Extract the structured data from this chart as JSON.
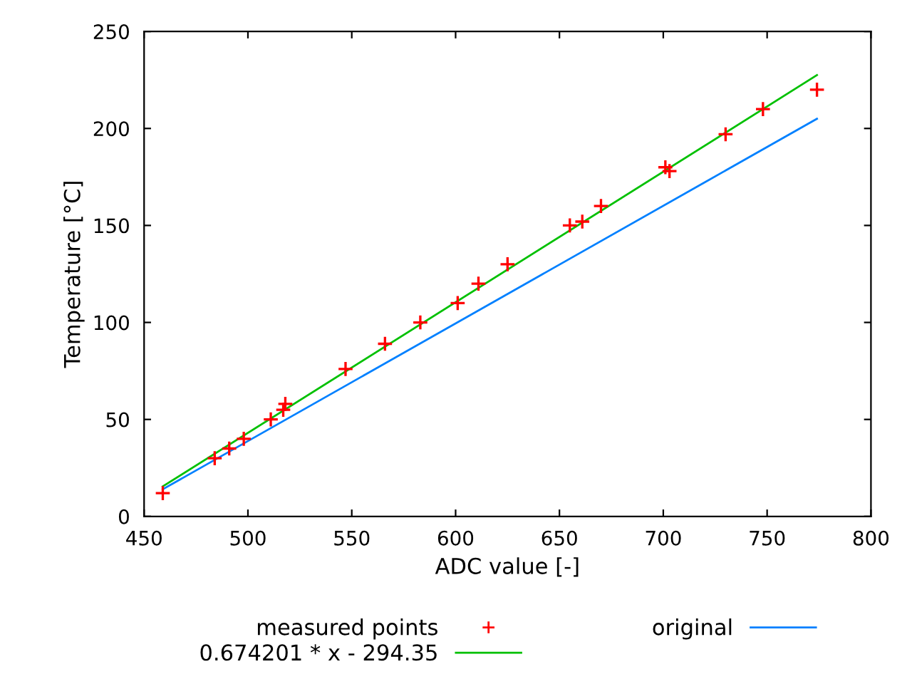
{
  "chart_data": {
    "type": "scatter",
    "xlabel": "ADC value [-]",
    "ylabel": "Temperature [°C]",
    "xlim": [
      450,
      800
    ],
    "xticks": [
      450,
      500,
      550,
      600,
      650,
      700,
      750,
      800
    ],
    "ylim": [
      0,
      250
    ],
    "yticks": [
      0,
      50,
      100,
      150,
      200,
      250
    ],
    "grid": false,
    "legend": "bottom",
    "series": [
      {
        "name": "measured points",
        "marker": "cross",
        "color": "#ff0000",
        "x": [
          459,
          484,
          491,
          498,
          511,
          517,
          518,
          547,
          566,
          583,
          601,
          611,
          625,
          655,
          661,
          670,
          701,
          703,
          730,
          748,
          774
        ],
        "values": [
          12,
          30,
          35,
          40,
          50,
          55,
          58,
          76,
          89,
          100,
          110,
          120,
          130,
          150,
          152,
          160,
          180,
          178,
          197,
          210,
          220
        ]
      },
      {
        "name": "0.674201 * x - 294.35",
        "type": "line",
        "marker": "none",
        "line_style": "solid",
        "color": "#00c000",
        "x": [
          459,
          774
        ],
        "values": [
          15.5,
          227.5
        ]
      },
      {
        "name": "original",
        "type": "line",
        "marker": "none",
        "line_style": "solid",
        "color": "#0080ff",
        "x": [
          459,
          774
        ],
        "values": [
          14,
          205
        ]
      }
    ]
  }
}
